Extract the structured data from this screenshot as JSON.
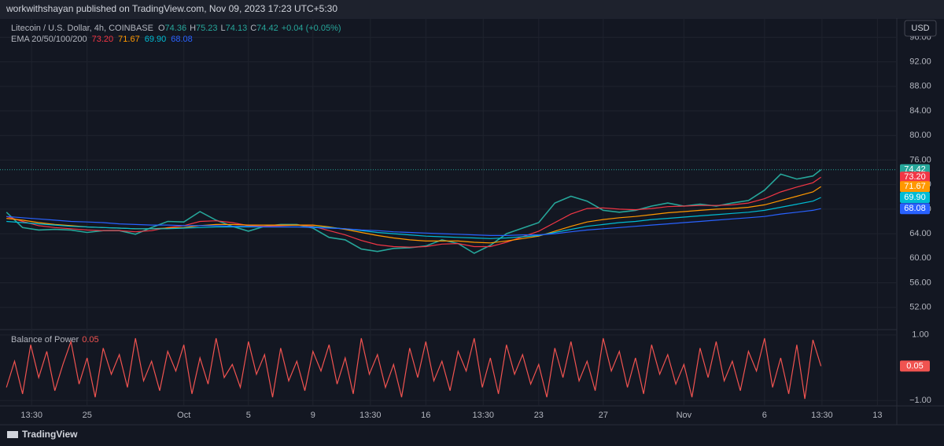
{
  "header": {
    "publisher": "workwithshayan published on TradingView.com, Nov 09, 2023 17:23 UTC+5:30",
    "symbol": "Litecoin / U.S. Dollar, 4h, COINBASE",
    "ohlc": [
      {
        "label": "O",
        "value": "74.36"
      },
      {
        "label": "H",
        "value": "75.23"
      },
      {
        "label": "L",
        "value": "74.13"
      },
      {
        "label": "C"
      }
    ],
    "change": "+0.04 (+0.05%)",
    "indicator": "EMA 20/50/100/200",
    "currency": "USD"
  },
  "footer": {
    "brand": "TradingView"
  },
  "chart_data": [
    {
      "type": "line",
      "grid": true,
      "x": [
        -1,
        0,
        1,
        2,
        3,
        4,
        5,
        6,
        7,
        8,
        9,
        10,
        11,
        12,
        13,
        14,
        15,
        16,
        17,
        18,
        19,
        20,
        21,
        22,
        23,
        24,
        25,
        26,
        27,
        28,
        29,
        30,
        31,
        32,
        33,
        34,
        35,
        36,
        37,
        38,
        39,
        40,
        41,
        42,
        43,
        44,
        45,
        46,
        47,
        48,
        49,
        49.5
      ],
      "xlim": [
        -1.4,
        54.2
      ],
      "ylim": [
        48.5,
        99
      ],
      "yticks": [
        {
          "value": 52,
          "label": "52.00"
        },
        {
          "value": 56,
          "label": "56.00"
        },
        {
          "value": 60,
          "label": "60.00"
        },
        {
          "value": 64,
          "label": "64.00"
        },
        {
          "value": 68,
          "label": "68.00"
        },
        {
          "value": 72,
          "label": "72.00"
        },
        {
          "value": 76,
          "label": "76.00"
        },
        {
          "value": 80,
          "label": "80.00"
        },
        {
          "value": 84,
          "label": "84.00"
        },
        {
          "value": 88,
          "label": "88.00"
        },
        {
          "value": 92,
          "label": "92.00"
        },
        {
          "value": 96,
          "label": "96.00"
        }
      ],
      "series": [
        {
          "name": "Litecoin / U.S. Dollar, 4h, COINBASE",
          "color": "#26a69a",
          "values": [
            67.5,
            65.0,
            64.6,
            64.7,
            64.6,
            64.2,
            64.5,
            64.5,
            63.9,
            65.0,
            66.0,
            65.9,
            67.6,
            66.2,
            65.2,
            64.4,
            65.2,
            65.5,
            65.5,
            64.9,
            63.4,
            63.0,
            61.5,
            61.1,
            61.6,
            61.7,
            62.0,
            63.0,
            62.4,
            60.8,
            62.1,
            64.0,
            64.9,
            65.8,
            69.0,
            70.1,
            69.3,
            67.8,
            67.5,
            67.8,
            68.5,
            69.0,
            68.5,
            68.8,
            68.5,
            69.0,
            69.4,
            71.1,
            73.7,
            72.9,
            73.4,
            74.42
          ]
        },
        {
          "color": "#f23645",
          "last_value_label": "73.20",
          "values": [
            66.8,
            66.0,
            65.3,
            65.0,
            64.8,
            64.6,
            64.5,
            64.5,
            64.3,
            64.5,
            65.0,
            65.3,
            66.0,
            66.1,
            65.8,
            65.3,
            65.2,
            65.3,
            65.4,
            65.2,
            64.5,
            63.8,
            62.9,
            62.2,
            61.9,
            61.8,
            61.9,
            62.3,
            62.4,
            61.9,
            61.9,
            62.6,
            63.5,
            64.4,
            65.8,
            67.2,
            68.1,
            68.2,
            68.0,
            67.9,
            68.1,
            68.4,
            68.5,
            68.6,
            68.6,
            68.7,
            69.0,
            69.7,
            70.8,
            71.6,
            72.3,
            73.2
          ]
        },
        {
          "color": "#ff9800",
          "last_value_label": "71.67",
          "values": [
            66.5,
            66.2,
            65.8,
            65.5,
            65.3,
            65.1,
            65.0,
            64.9,
            64.8,
            64.8,
            64.9,
            65.0,
            65.3,
            65.5,
            65.5,
            65.4,
            65.4,
            65.4,
            65.4,
            65.4,
            65.1,
            64.7,
            64.2,
            63.7,
            63.3,
            63.0,
            62.8,
            62.8,
            62.8,
            62.6,
            62.5,
            62.8,
            63.2,
            63.6,
            64.4,
            65.2,
            65.9,
            66.3,
            66.6,
            66.8,
            67.1,
            67.4,
            67.6,
            67.8,
            68.0,
            68.1,
            68.3,
            68.7,
            69.4,
            70.1,
            70.8,
            71.67
          ]
        },
        {
          "color": "#00bcd4",
          "last_value_label": "69.90",
          "values": [
            66.0,
            65.8,
            65.6,
            65.4,
            65.2,
            65.1,
            65.0,
            64.9,
            64.8,
            64.8,
            64.8,
            64.9,
            65.0,
            65.1,
            65.1,
            65.1,
            65.1,
            65.1,
            65.1,
            65.1,
            65.0,
            64.8,
            64.5,
            64.2,
            64.0,
            63.8,
            63.6,
            63.5,
            63.4,
            63.3,
            63.2,
            63.3,
            63.5,
            63.7,
            64.2,
            64.7,
            65.2,
            65.5,
            65.8,
            66.0,
            66.3,
            66.5,
            66.7,
            66.9,
            67.1,
            67.3,
            67.5,
            67.8,
            68.3,
            68.8,
            69.3,
            69.9
          ]
        },
        {
          "color": "#2962ff",
          "last_value_label": "68.08",
          "values": [
            66.8,
            66.6,
            66.4,
            66.2,
            66.0,
            65.9,
            65.8,
            65.6,
            65.5,
            65.4,
            65.4,
            65.3,
            65.3,
            65.3,
            65.2,
            65.2,
            65.1,
            65.1,
            65.1,
            65.0,
            64.9,
            64.8,
            64.6,
            64.5,
            64.3,
            64.2,
            64.1,
            64.0,
            63.9,
            63.8,
            63.7,
            63.7,
            63.8,
            63.8,
            64.0,
            64.3,
            64.6,
            64.8,
            65.0,
            65.2,
            65.4,
            65.6,
            65.8,
            66.0,
            66.2,
            66.4,
            66.6,
            66.8,
            67.2,
            67.5,
            67.8,
            68.08
          ]
        }
      ]
    },
    {
      "type": "line",
      "grid": true,
      "x": [
        -1,
        -0.5,
        0,
        0.5,
        1,
        1.5,
        2,
        2.5,
        3,
        3.5,
        4,
        4.5,
        5,
        5.5,
        6,
        6.5,
        7,
        7.5,
        8,
        8.5,
        9,
        9.5,
        10,
        10.5,
        11,
        11.5,
        12,
        12.5,
        13,
        13.5,
        14,
        14.5,
        15,
        15.5,
        16,
        16.5,
        17,
        17.5,
        18,
        18.5,
        19,
        19.5,
        20,
        20.5,
        21,
        21.5,
        22,
        22.5,
        23,
        23.5,
        24,
        24.5,
        25,
        25.5,
        26,
        26.5,
        27,
        27.5,
        28,
        28.5,
        29,
        29.5,
        30,
        30.5,
        31,
        31.5,
        32,
        32.5,
        33,
        33.5,
        34,
        34.5,
        35,
        35.5,
        36,
        36.5,
        37,
        37.5,
        38,
        38.5,
        39,
        39.5,
        40,
        40.5,
        41,
        41.5,
        42,
        42.5,
        43,
        43.5,
        44,
        44.5,
        45,
        45.5,
        46,
        46.5,
        47,
        47.5,
        48,
        48.5,
        49,
        49.5
      ],
      "xlim": [
        -1.4,
        54.2
      ],
      "ylim": [
        -1.14,
        1.14
      ],
      "yticks": [
        {
          "value": 1,
          "label": "1.00"
        },
        {
          "value": -1,
          "label": "−1.00"
        }
      ],
      "xticks": [
        {
          "value": 0.56,
          "label": "13:30"
        },
        {
          "value": 4,
          "label": "25"
        },
        {
          "value": 10,
          "label": "Oct"
        },
        {
          "value": 14,
          "label": "5"
        },
        {
          "value": 18,
          "label": "9"
        },
        {
          "value": 21.56,
          "label": "13:30"
        },
        {
          "value": 25,
          "label": "16"
        },
        {
          "value": 28.56,
          "label": "13:30"
        },
        {
          "value": 32,
          "label": "23"
        },
        {
          "value": 36,
          "label": "27"
        },
        {
          "value": 41,
          "label": "Nov"
        },
        {
          "value": 46,
          "label": "6"
        },
        {
          "value": 49.56,
          "label": "13:30"
        },
        {
          "value": 53,
          "label": "13"
        }
      ],
      "series": [
        {
          "name": "Balance of Power",
          "color": "#f05350",
          "values": [
            -0.6,
            0.2,
            -0.8,
            0.7,
            -0.3,
            0.5,
            -0.7,
            0.1,
            0.8,
            -0.5,
            0.3,
            -0.9,
            0.6,
            -0.2,
            0.4,
            -0.6,
            0.9,
            -0.4,
            0.2,
            -0.7,
            0.5,
            -0.1,
            0.7,
            -0.8,
            0.3,
            -0.5,
            0.9,
            -0.3,
            0.1,
            -0.6,
            0.8,
            -0.2,
            0.4,
            -0.9,
            0.6,
            -0.4,
            0.2,
            -0.7,
            0.5,
            -0.1,
            0.7,
            -0.5,
            0.3,
            -0.8,
            0.9,
            -0.2,
            0.4,
            -0.6,
            0.1,
            -0.9,
            0.6,
            -0.3,
            0.8,
            -0.4,
            0.2,
            -0.7,
            0.5,
            -0.1,
            0.9,
            -0.6,
            0.3,
            -0.8,
            0.7,
            -0.2,
            0.4,
            -0.5,
            0.1,
            -0.9,
            0.6,
            -0.3,
            0.8,
            -0.4,
            0.2,
            -0.7,
            0.9,
            -0.1,
            0.5,
            -0.6,
            0.3,
            -0.8,
            0.7,
            -0.2,
            0.4,
            -0.5,
            0.1,
            -0.9,
            0.6,
            -0.3,
            0.8,
            -0.4,
            0.2,
            -0.7,
            0.5,
            -0.1,
            0.9,
            -0.6,
            0.3,
            -0.8,
            0.7,
            -0.95,
            0.85,
            0.05
          ]
        }
      ]
    }
  ]
}
